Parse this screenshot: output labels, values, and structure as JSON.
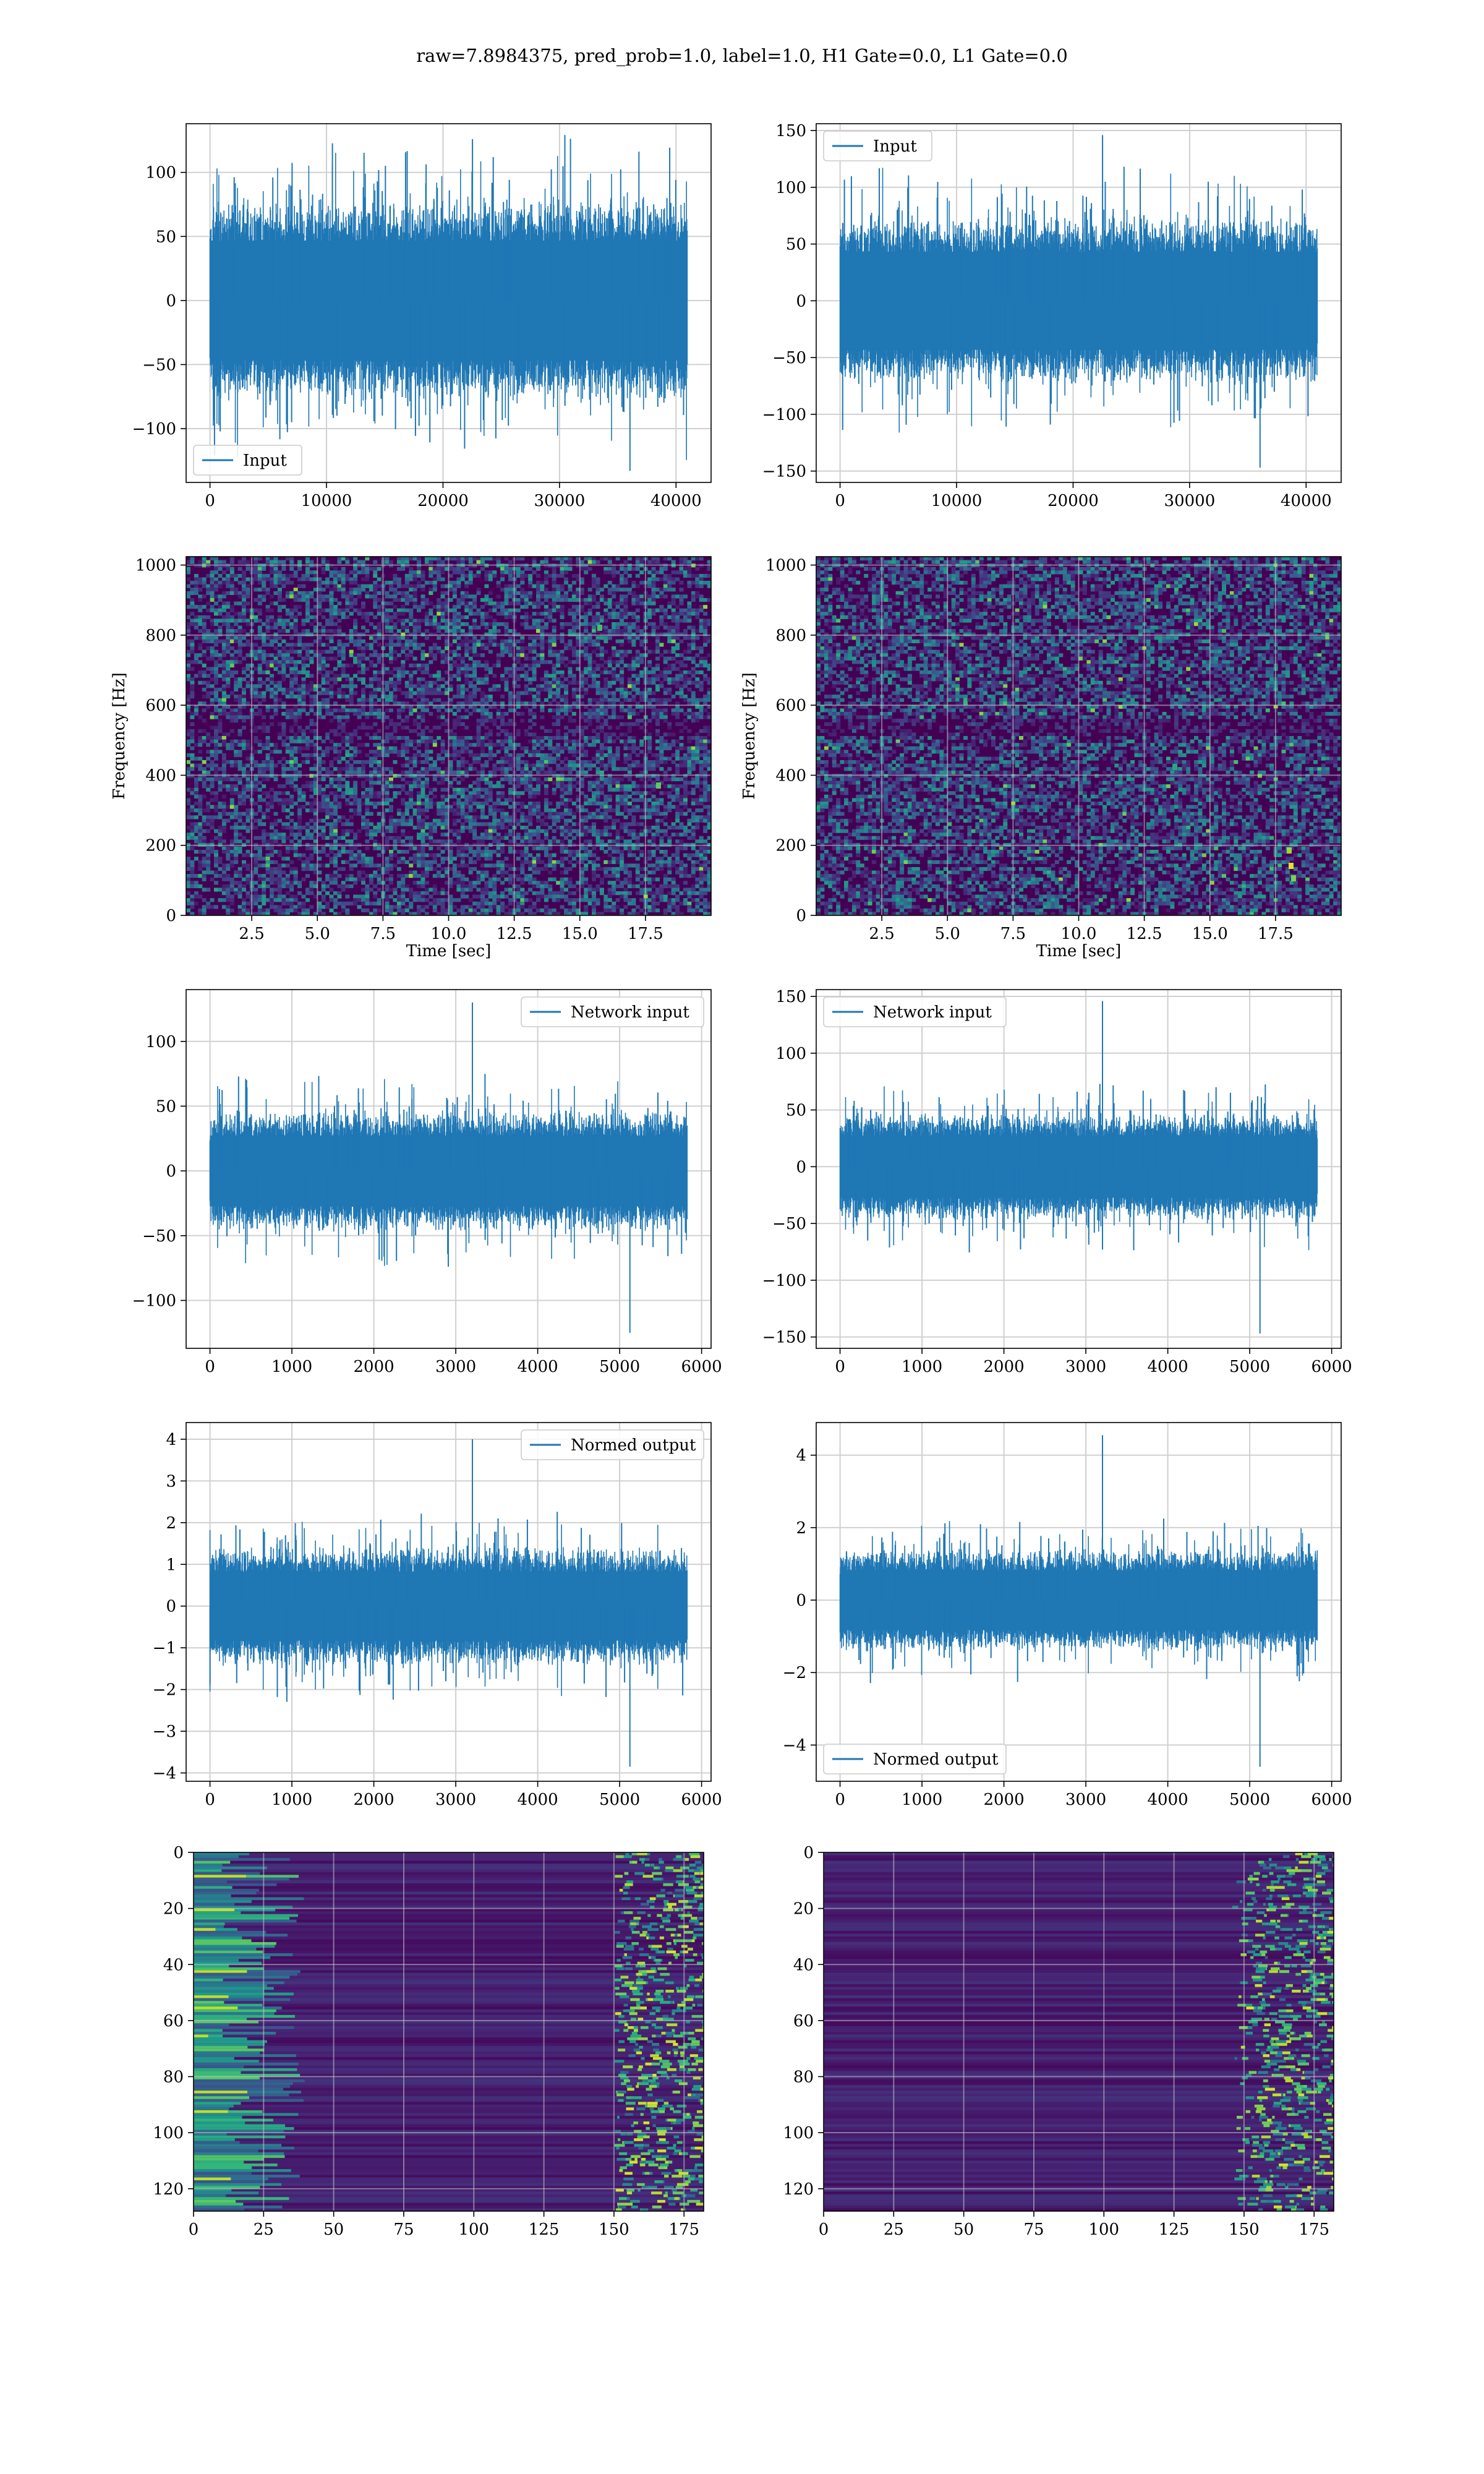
{
  "title": "raw=7.8984375, pred_prob=1.0, label=1.0, H1 Gate=0.0, L1 Gate=0.0",
  "colors": {
    "line": "#1f77b4",
    "grid": "#d0d0d0",
    "viridis_low": "#440154",
    "viridis_high": "#fde725"
  },
  "chart_data": [
    {
      "id": "p0",
      "type": "line",
      "series": [
        {
          "name": "Input"
        }
      ],
      "legend": "lower-left",
      "xlim": [
        -2048,
        43008
      ],
      "ylim": [
        -142,
        138
      ],
      "xticks": [
        0,
        10000,
        20000,
        30000,
        40000
      ],
      "xtick_labels": [
        "0",
        "10000",
        "20000",
        "30000",
        "40000"
      ],
      "yticks": [
        -100,
        -50,
        0,
        50,
        100
      ],
      "ytick_labels": [
        "−100",
        "−50",
        "0",
        "50",
        "100"
      ],
      "signal": {
        "x_start": 0,
        "x_end": 40960,
        "envelope": 65,
        "peak": 126,
        "min": -133
      },
      "grid": true
    },
    {
      "id": "p1",
      "type": "line",
      "series": [
        {
          "name": "Input"
        }
      ],
      "legend": "upper-left",
      "xlim": [
        -2048,
        43008
      ],
      "ylim": [
        -160,
        156
      ],
      "xticks": [
        0,
        10000,
        20000,
        30000,
        40000
      ],
      "xtick_labels": [
        "0",
        "10000",
        "20000",
        "30000",
        "40000"
      ],
      "yticks": [
        -150,
        -100,
        -50,
        0,
        50,
        100,
        150
      ],
      "ytick_labels": [
        "−150",
        "−100",
        "−50",
        "0",
        "50",
        "100",
        "150"
      ],
      "signal": {
        "x_start": 0,
        "x_end": 40960,
        "envelope": 60,
        "peak": 146,
        "min": -147
      },
      "grid": true
    },
    {
      "id": "p2",
      "type": "heatmap",
      "ylabel": "Frequency [Hz]",
      "xlabel": "Time [sec]",
      "xlim": [
        0,
        20
      ],
      "ylim": [
        0,
        1024
      ],
      "xticks": [
        2.5,
        5.0,
        7.5,
        10.0,
        12.5,
        15.0,
        17.5
      ],
      "xtick_labels": [
        "2.5",
        "5.0",
        "7.5",
        "10.0",
        "12.5",
        "15.0",
        "17.5"
      ],
      "yticks": [
        0,
        200,
        400,
        600,
        800,
        1000
      ],
      "ytick_labels": [
        "0",
        "200",
        "400",
        "600",
        "800",
        "1000"
      ],
      "colormap": "viridis",
      "grid": true
    },
    {
      "id": "p3",
      "type": "heatmap",
      "ylabel": "Frequency [Hz]",
      "xlabel": "Time [sec]",
      "xlim": [
        0,
        20
      ],
      "ylim": [
        0,
        1024
      ],
      "xticks": [
        2.5,
        5.0,
        7.5,
        10.0,
        12.5,
        15.0,
        17.5
      ],
      "xtick_labels": [
        "2.5",
        "5.0",
        "7.5",
        "10.0",
        "12.5",
        "15.0",
        "17.5"
      ],
      "yticks": [
        0,
        200,
        400,
        600,
        800,
        1000
      ],
      "ytick_labels": [
        "0",
        "200",
        "400",
        "600",
        "800",
        "1000"
      ],
      "colormap": "viridis",
      "grid": true
    },
    {
      "id": "p4",
      "type": "line",
      "series": [
        {
          "name": "Network input"
        }
      ],
      "legend": "upper-right",
      "xlim": [
        -291,
        6116
      ],
      "ylim": [
        -137,
        140
      ],
      "xticks": [
        0,
        1000,
        2000,
        3000,
        4000,
        5000,
        6000
      ],
      "xtick_labels": [
        "0",
        "1000",
        "2000",
        "3000",
        "4000",
        "5000",
        "6000"
      ],
      "yticks": [
        -100,
        -50,
        0,
        50,
        100
      ],
      "ytick_labels": [
        "−100",
        "−50",
        "0",
        "50",
        "100"
      ],
      "signal": {
        "x_start": 0,
        "x_end": 5824,
        "envelope": 38,
        "peak": 130,
        "min": -125
      },
      "grid": true
    },
    {
      "id": "p5",
      "type": "line",
      "series": [
        {
          "name": "Network input"
        }
      ],
      "legend": "upper-left",
      "xlim": [
        -291,
        6116
      ],
      "ylim": [
        -160,
        156
      ],
      "xticks": [
        0,
        1000,
        2000,
        3000,
        4000,
        5000,
        6000
      ],
      "xtick_labels": [
        "0",
        "1000",
        "2000",
        "3000",
        "4000",
        "5000",
        "6000"
      ],
      "yticks": [
        -150,
        -100,
        -50,
        0,
        50,
        100,
        150
      ],
      "ytick_labels": [
        "−150",
        "−100",
        "−50",
        "0",
        "50",
        "100",
        "150"
      ],
      "signal": {
        "x_start": 0,
        "x_end": 5824,
        "envelope": 38,
        "peak": 146,
        "min": -147
      },
      "grid": true
    },
    {
      "id": "p6",
      "type": "line",
      "series": [
        {
          "name": "Normed output"
        }
      ],
      "legend": "upper-right",
      "xlim": [
        -291,
        6116
      ],
      "ylim": [
        -4.2,
        4.4
      ],
      "xticks": [
        0,
        1000,
        2000,
        3000,
        4000,
        5000,
        6000
      ],
      "xtick_labels": [
        "0",
        "1000",
        "2000",
        "3000",
        "4000",
        "5000",
        "6000"
      ],
      "yticks": [
        -4,
        -3,
        -2,
        -1,
        0,
        1,
        2,
        3,
        4
      ],
      "ytick_labels": [
        "−4",
        "−3",
        "−2",
        "−1",
        "0",
        "1",
        "2",
        "3",
        "4"
      ],
      "signal": {
        "x_start": 0,
        "x_end": 5824,
        "envelope": 1.15,
        "peak": 4.0,
        "min": -3.85
      },
      "grid": true
    },
    {
      "id": "p7",
      "type": "line",
      "series": [
        {
          "name": "Normed output"
        }
      ],
      "legend": "lower-left",
      "xlim": [
        -291,
        6116
      ],
      "ylim": [
        -5.0,
        4.9
      ],
      "xticks": [
        0,
        1000,
        2000,
        3000,
        4000,
        5000,
        6000
      ],
      "xtick_labels": [
        "0",
        "1000",
        "2000",
        "3000",
        "4000",
        "5000",
        "6000"
      ],
      "yticks": [
        -4,
        -2,
        0,
        2,
        4
      ],
      "ytick_labels": [
        "−4",
        "−2",
        "0",
        "2",
        "4"
      ],
      "signal": {
        "x_start": 0,
        "x_end": 5824,
        "envelope": 1.15,
        "peak": 4.55,
        "min": -4.6
      },
      "grid": true
    },
    {
      "id": "p8",
      "type": "heatmap",
      "xlim": [
        0,
        182
      ],
      "ylim": [
        128,
        0
      ],
      "xticks": [
        0,
        25,
        50,
        75,
        100,
        125,
        150,
        175
      ],
      "xtick_labels": [
        "0",
        "25",
        "50",
        "75",
        "100",
        "125",
        "150",
        "175"
      ],
      "yticks": [
        0,
        20,
        40,
        60,
        80,
        100,
        120
      ],
      "ytick_labels": [
        "0",
        "20",
        "40",
        "60",
        "80",
        "100",
        "120"
      ],
      "colormap": "viridis",
      "grid": true
    },
    {
      "id": "p9",
      "type": "heatmap",
      "xlim": [
        0,
        182
      ],
      "ylim": [
        128,
        0
      ],
      "xticks": [
        0,
        25,
        50,
        75,
        100,
        125,
        150,
        175
      ],
      "xtick_labels": [
        "0",
        "25",
        "50",
        "75",
        "100",
        "125",
        "150",
        "175"
      ],
      "yticks": [
        0,
        20,
        40,
        60,
        80,
        100,
        120
      ],
      "ytick_labels": [
        "0",
        "20",
        "40",
        "60",
        "80",
        "100",
        "120"
      ],
      "colormap": "viridis",
      "grid": true
    }
  ]
}
